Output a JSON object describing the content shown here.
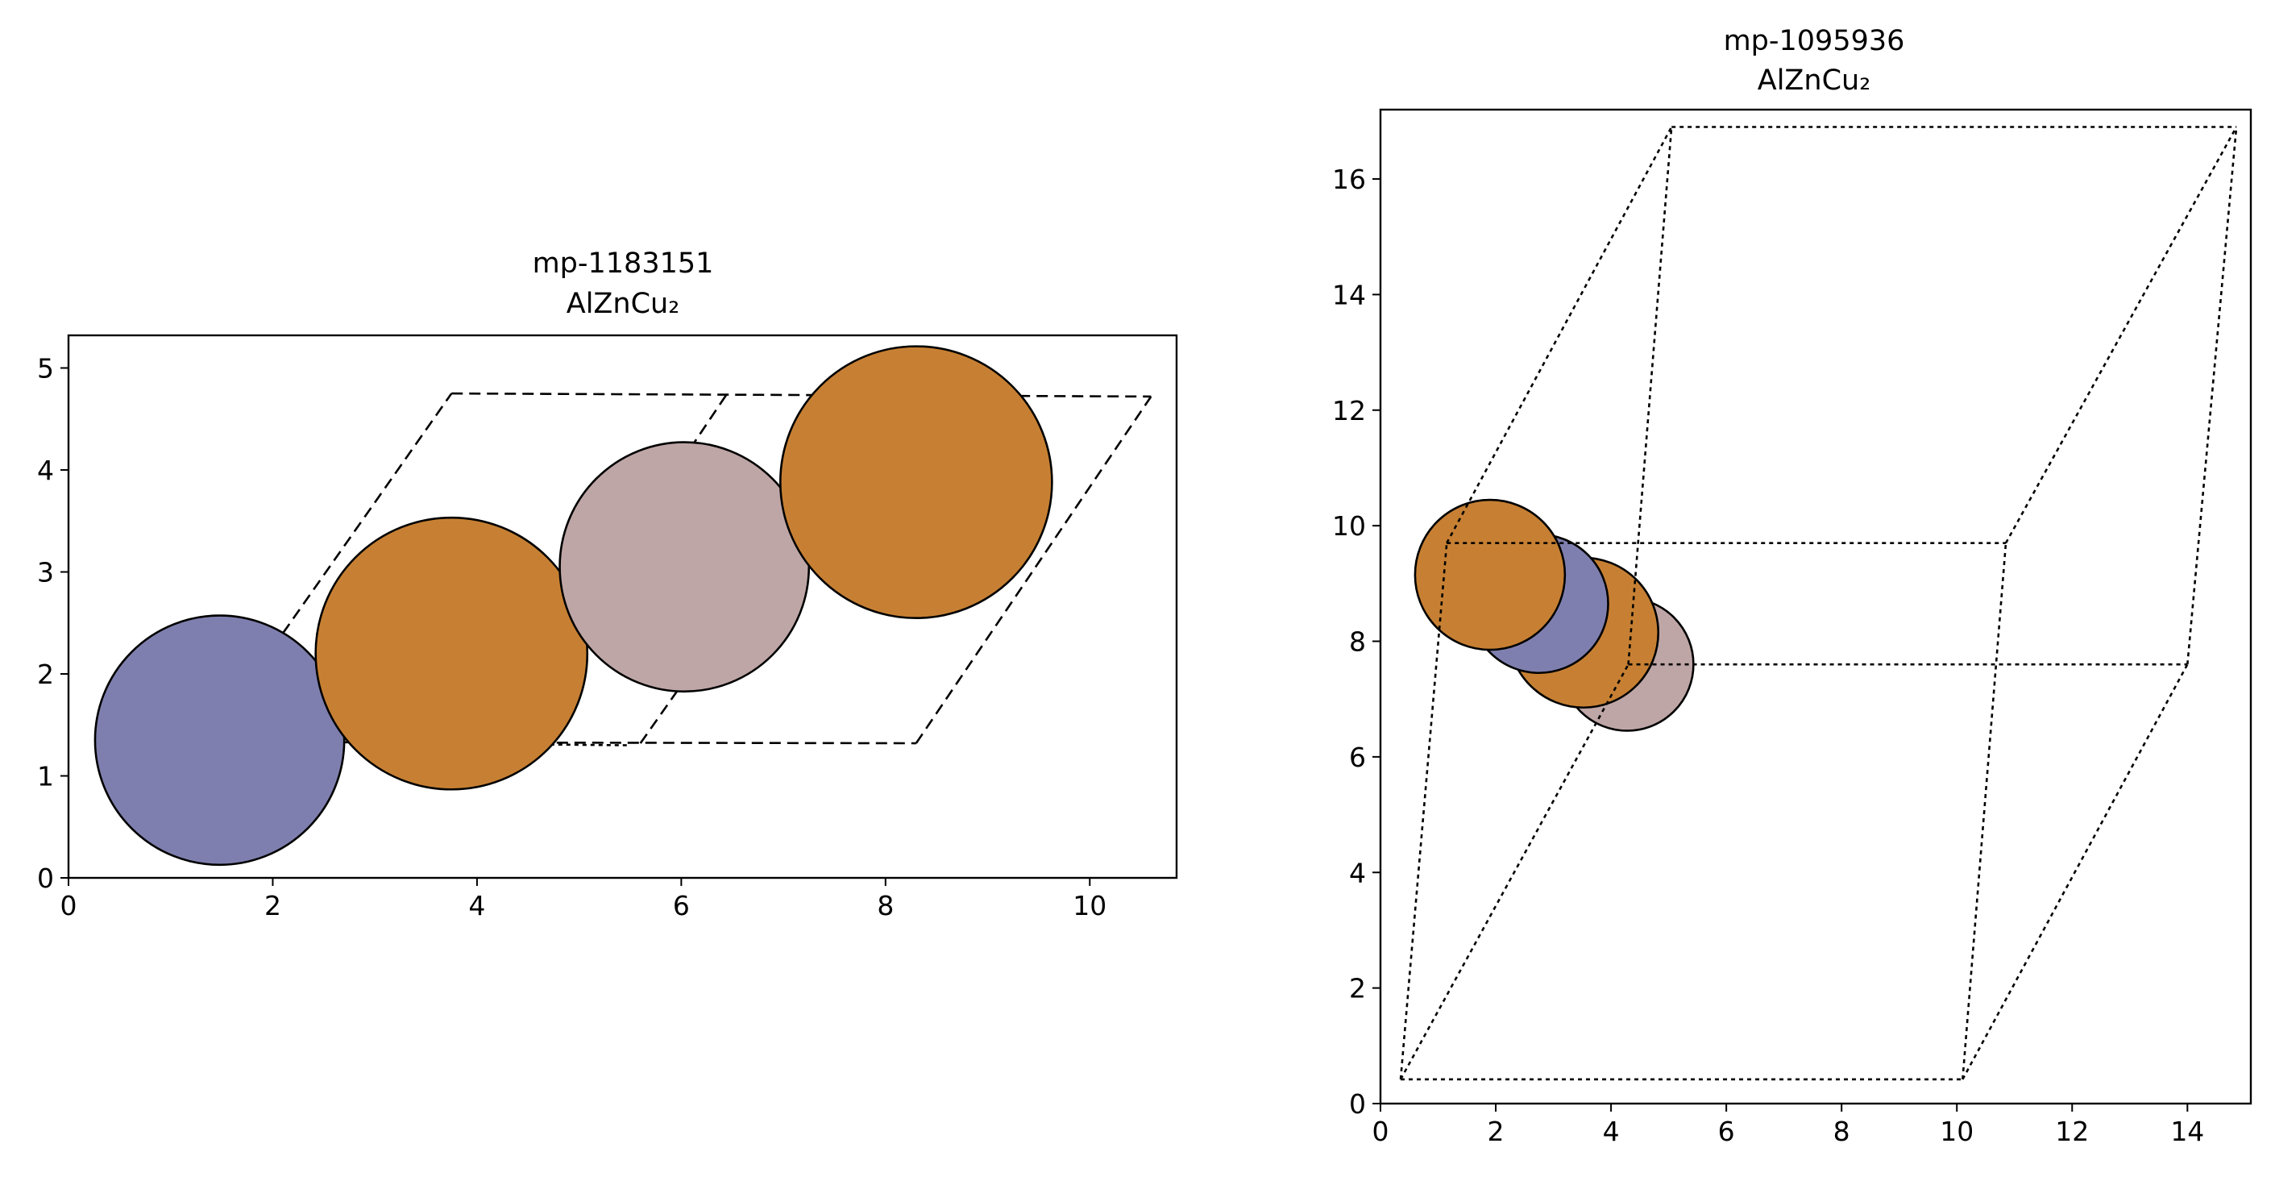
{
  "chart_data": [
    {
      "type": "scatter",
      "title": "mp-1183151",
      "subtitle": "AlZnCu₂",
      "xlabel": "",
      "ylabel": "",
      "xlim": [
        0,
        10.85
      ],
      "ylim": [
        0,
        5.32
      ],
      "xticks": [
        0,
        2,
        4,
        6,
        8,
        10
      ],
      "yticks": [
        0,
        1,
        2,
        3,
        4,
        5
      ],
      "grid": false,
      "atoms": [
        {
          "element": "Zn",
          "x": 1.48,
          "y": 1.35,
          "radius": 1.22,
          "color": "#7f7faf"
        },
        {
          "element": "Cu",
          "x": 3.75,
          "y": 2.2,
          "radius": 1.33,
          "color": "#c78033"
        },
        {
          "element": "Al",
          "x": 6.03,
          "y": 3.05,
          "radius": 1.22,
          "color": "#bfa6a6"
        },
        {
          "element": "Cu",
          "x": 8.3,
          "y": 3.88,
          "radius": 1.33,
          "color": "#c78033"
        }
      ],
      "cell_edges": [
        {
          "from": [
            2.35,
            1.33
          ],
          "to": [
            8.3,
            1.32
          ],
          "style": "dashed"
        },
        {
          "from": [
            2.35,
            1.33
          ],
          "to": [
            5.5,
            1.3
          ],
          "style": "dotted"
        },
        {
          "from": [
            3.75,
            4.75
          ],
          "to": [
            10.6,
            4.72
          ],
          "style": "dashed"
        },
        {
          "from": [
            2.1,
            2.4
          ],
          "to": [
            3.75,
            4.75
          ],
          "style": "dashed"
        },
        {
          "from": [
            8.3,
            1.32
          ],
          "to": [
            10.6,
            4.72
          ],
          "style": "dashed"
        },
        {
          "from": [
            4.15,
            1.32
          ],
          "to": [
            6.45,
            4.75
          ],
          "style": "dashed"
        },
        {
          "from": [
            5.6,
            1.32
          ],
          "to": [
            6.5,
            2.6
          ],
          "style": "dashed"
        }
      ]
    },
    {
      "type": "scatter",
      "title": "mp-1095936",
      "subtitle": "AlZnCu₂",
      "xlabel": "",
      "ylabel": "",
      "xlim": [
        0,
        15.1
      ],
      "ylim": [
        0,
        17.2
      ],
      "xticks": [
        0,
        2,
        4,
        6,
        8,
        10,
        12,
        14
      ],
      "yticks": [
        0,
        2,
        4,
        6,
        8,
        10,
        12,
        14,
        16
      ],
      "grid": false,
      "atoms": [
        {
          "element": "Al",
          "x": 4.28,
          "y": 7.6,
          "radius": 1.15,
          "color": "#bfa6a6"
        },
        {
          "element": "Cu",
          "x": 3.52,
          "y": 8.15,
          "radius": 1.3,
          "color": "#c78033"
        },
        {
          "element": "Zn",
          "x": 2.75,
          "y": 8.65,
          "radius": 1.2,
          "color": "#7f7faf"
        },
        {
          "element": "Cu",
          "x": 1.9,
          "y": 9.15,
          "radius": 1.3,
          "color": "#c78033"
        }
      ],
      "cell_edges": [
        {
          "from": [
            0.35,
            0.42
          ],
          "to": [
            10.1,
            0.42
          ],
          "style": "dotted"
        },
        {
          "from": [
            0.35,
            0.42
          ],
          "to": [
            1.15,
            9.7
          ],
          "style": "dotted"
        },
        {
          "from": [
            10.1,
            0.42
          ],
          "to": [
            10.85,
            9.7
          ],
          "style": "dotted"
        },
        {
          "from": [
            1.15,
            9.7
          ],
          "to": [
            10.85,
            9.7
          ],
          "style": "dotted"
        },
        {
          "from": [
            0.35,
            0.42
          ],
          "to": [
            4.3,
            7.6
          ],
          "style": "dotted"
        },
        {
          "from": [
            10.1,
            0.42
          ],
          "to": [
            14.0,
            7.6
          ],
          "style": "dotted"
        },
        {
          "from": [
            4.3,
            7.6
          ],
          "to": [
            14.0,
            7.6
          ],
          "style": "dotted"
        },
        {
          "from": [
            1.15,
            9.7
          ],
          "to": [
            5.05,
            16.9
          ],
          "style": "dotted"
        },
        {
          "from": [
            10.85,
            9.7
          ],
          "to": [
            14.85,
            16.9
          ],
          "style": "dotted"
        },
        {
          "from": [
            5.05,
            16.9
          ],
          "to": [
            14.85,
            16.9
          ],
          "style": "dotted"
        },
        {
          "from": [
            4.3,
            7.6
          ],
          "to": [
            5.05,
            16.9
          ],
          "style": "dotted"
        },
        {
          "from": [
            14.0,
            7.6
          ],
          "to": [
            14.85,
            16.9
          ],
          "style": "dotted"
        }
      ]
    }
  ]
}
